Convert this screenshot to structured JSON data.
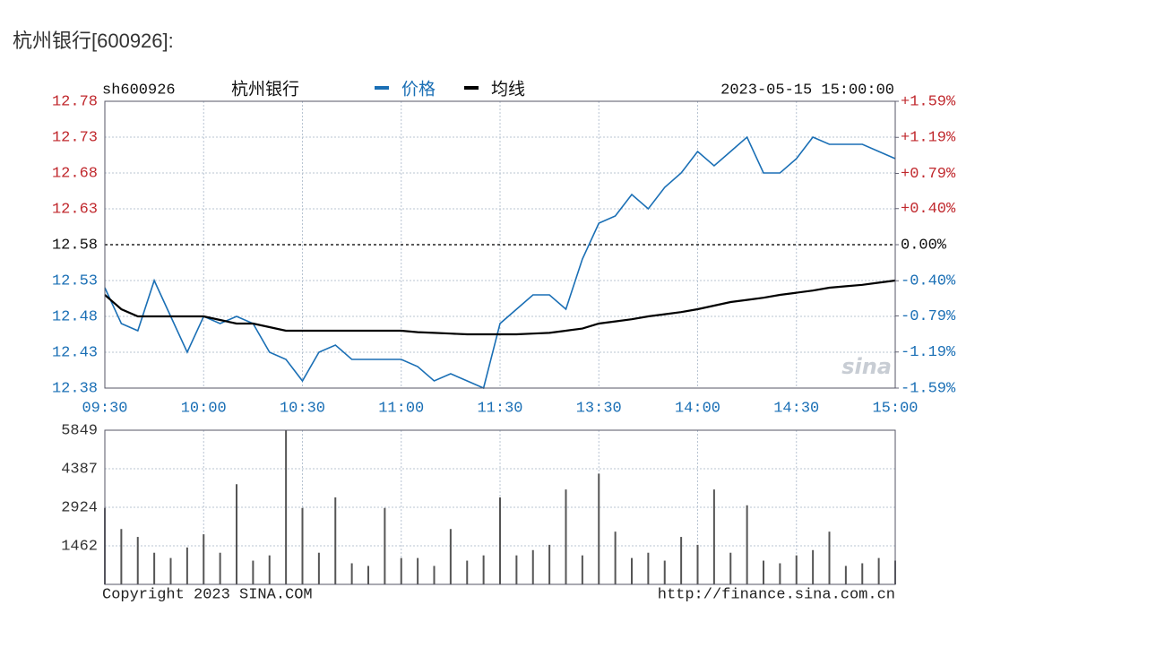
{
  "header": {
    "title": "杭州银行[600926]:"
  },
  "chart_data": [
    {
      "type": "line",
      "code": "sh600926",
      "name": "杭州银行",
      "timestamp": "2023-05-15 15:00:00",
      "x": [
        0,
        5,
        10,
        15,
        20,
        25,
        30,
        35,
        40,
        45,
        50,
        55,
        60,
        65,
        70,
        75,
        80,
        85,
        90,
        95,
        100,
        105,
        110,
        115,
        120,
        125,
        130,
        135,
        140,
        145,
        150,
        155,
        160,
        165,
        170,
        175,
        180,
        185,
        190,
        195,
        200,
        205,
        210,
        215,
        220,
        225,
        230,
        235,
        240
      ],
      "xlim": [
        0,
        240
      ],
      "xticks": [
        {
          "value": 0,
          "label": "09:30"
        },
        {
          "value": 30,
          "label": "10:00"
        },
        {
          "value": 60,
          "label": "10:30"
        },
        {
          "value": 90,
          "label": "11:00"
        },
        {
          "value": 120,
          "label": "11:30"
        },
        {
          "value": 150,
          "label": "13:30"
        },
        {
          "value": 180,
          "label": "14:00"
        },
        {
          "value": 210,
          "label": "14:30"
        },
        {
          "value": 240,
          "label": "15:00"
        }
      ],
      "ylim": [
        12.38,
        12.78
      ],
      "yticks": [
        12.38,
        12.43,
        12.48,
        12.53,
        12.58,
        12.63,
        12.68,
        12.73,
        12.78
      ],
      "y2lim": [
        -1.59,
        1.59
      ],
      "y2ticks": [
        {
          "value": -1.59,
          "label": "-1.59%"
        },
        {
          "value": -1.19,
          "label": "-1.19%"
        },
        {
          "value": -0.79,
          "label": "-0.79%"
        },
        {
          "value": -0.4,
          "label": "-0.40%"
        },
        {
          "value": 0,
          "label": "0.00%"
        },
        {
          "value": 0.4,
          "label": "+0.40%"
        },
        {
          "value": 0.79,
          "label": "+0.79%"
        },
        {
          "value": 1.19,
          "label": "+1.19%"
        },
        {
          "value": 1.59,
          "label": "+1.59%"
        }
      ],
      "reference": 12.58,
      "grid": true,
      "series": [
        {
          "name": "价格",
          "color": "#1a6fb5",
          "values": [
            12.52,
            12.47,
            12.46,
            12.53,
            12.48,
            12.43,
            12.48,
            12.47,
            12.48,
            12.47,
            12.43,
            12.42,
            12.39,
            12.43,
            12.44,
            12.42,
            12.42,
            12.42,
            12.42,
            12.41,
            12.39,
            12.4,
            12.39,
            12.38,
            12.47,
            12.49,
            12.51,
            12.51,
            12.49,
            12.56,
            12.61,
            12.62,
            12.65,
            12.63,
            12.66,
            12.68,
            12.71,
            12.69,
            12.71,
            12.73,
            12.68,
            12.68,
            12.7,
            12.73,
            12.72,
            12.72,
            12.72,
            12.71,
            12.7
          ]
        },
        {
          "name": "均线",
          "color": "#000000",
          "values": [
            12.51,
            12.49,
            12.48,
            12.48,
            12.48,
            12.48,
            12.48,
            12.475,
            12.47,
            12.47,
            12.465,
            12.46,
            12.46,
            12.46,
            12.46,
            12.46,
            12.46,
            12.46,
            12.46,
            12.458,
            12.457,
            12.456,
            12.455,
            12.455,
            12.455,
            12.455,
            12.456,
            12.457,
            12.46,
            12.463,
            12.47,
            12.473,
            12.476,
            12.48,
            12.483,
            12.486,
            12.49,
            12.495,
            12.5,
            12.503,
            12.506,
            12.51,
            12.513,
            12.516,
            12.52,
            12.522,
            12.524,
            12.527,
            12.53
          ]
        }
      ]
    },
    {
      "type": "bar",
      "color": "#555555",
      "x": [
        0,
        5,
        10,
        15,
        20,
        25,
        30,
        35,
        40,
        45,
        50,
        55,
        60,
        65,
        70,
        75,
        80,
        85,
        90,
        95,
        100,
        105,
        110,
        115,
        120,
        125,
        130,
        135,
        140,
        145,
        150,
        155,
        160,
        165,
        170,
        175,
        180,
        185,
        190,
        195,
        200,
        205,
        210,
        215,
        220,
        225,
        230,
        235,
        240
      ],
      "values": [
        2900,
        2100,
        1800,
        1200,
        1000,
        1400,
        1900,
        1200,
        3800,
        900,
        1100,
        5849,
        2900,
        1200,
        3300,
        800,
        700,
        2900,
        1000,
        1000,
        700,
        2100,
        900,
        1100,
        3300,
        1100,
        1300,
        1500,
        3600,
        1100,
        4200,
        2000,
        1000,
        1200,
        900,
        1800,
        1500,
        3600,
        1200,
        3000,
        900,
        800,
        1100,
        1300,
        2000,
        700,
        800,
        1000,
        900
      ],
      "xlim": [
        0,
        240
      ],
      "xticks": [
        30,
        60,
        90,
        120,
        150,
        180,
        210
      ],
      "ylim": [
        0,
        5849
      ],
      "yticks": [
        1462,
        2924,
        4387,
        5849
      ],
      "grid": true
    }
  ],
  "footer": {
    "copyright": "Copyright 2023 SINA.COM",
    "url": "http://finance.sina.com.cn",
    "logo": "sina"
  }
}
